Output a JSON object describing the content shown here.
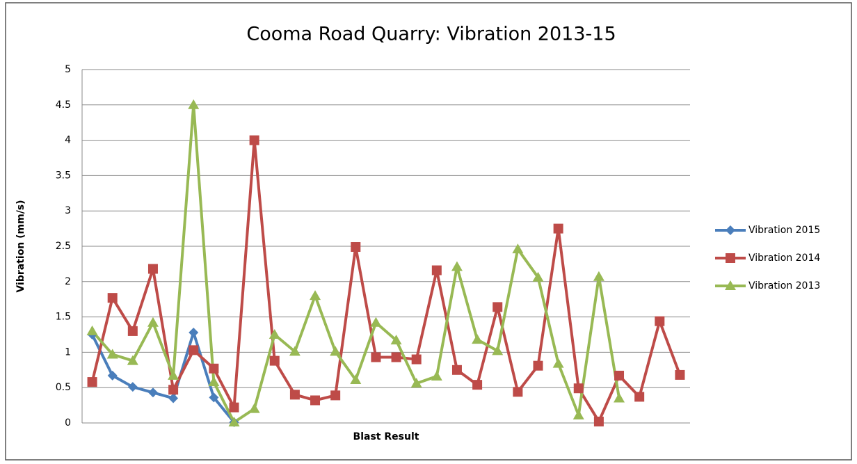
{
  "chart_data": {
    "type": "line",
    "title": "Cooma Road Quarry: Vibration 2013-15",
    "x_label": "Blast Result",
    "y_label": "Vibration (mm/s)",
    "categories": [
      null,
      null,
      null,
      null,
      null,
      null,
      null,
      null,
      null,
      null,
      null,
      null,
      null,
      null,
      null,
      null,
      null,
      null,
      null,
      null,
      null,
      null,
      null,
      null,
      null,
      null,
      null,
      null,
      null,
      null
    ],
    "series": [
      {
        "name": "Vibration 2015",
        "color": "#4a7ebb",
        "marker": "diamond",
        "values": [
          1.25,
          0.67,
          0.51,
          0.43,
          0.35,
          1.28,
          0.36,
          0.01,
          null,
          null,
          null,
          null,
          null,
          null,
          null,
          null,
          null,
          null,
          null,
          null,
          null,
          null,
          null,
          null,
          null,
          null,
          null,
          null,
          null,
          null
        ]
      },
      {
        "name": "Vibration 2014",
        "color": "#be4b48",
        "marker": "square",
        "values": [
          0.58,
          1.77,
          1.3,
          2.18,
          0.47,
          1.03,
          0.77,
          0.22,
          4.0,
          0.88,
          0.4,
          0.32,
          0.39,
          2.49,
          0.93,
          0.93,
          0.9,
          2.16,
          0.75,
          0.54,
          1.64,
          0.44,
          0.81,
          2.75,
          0.49,
          0.02,
          0.67,
          0.37,
          1.44,
          0.68
        ]
      },
      {
        "name": "Vibration 2013",
        "color": "#98b954",
        "marker": "triangle",
        "values": [
          1.3,
          0.97,
          0.88,
          1.42,
          0.67,
          4.5,
          0.58,
          0.01,
          0.2,
          1.25,
          1.01,
          1.8,
          1.01,
          0.61,
          1.42,
          1.17,
          0.56,
          0.66,
          2.21,
          1.18,
          1.02,
          2.46,
          2.06,
          0.84,
          0.11,
          2.07,
          0.35,
          null,
          null,
          null
        ]
      }
    ],
    "ylim": [
      0,
      5
    ],
    "yticks": [
      0,
      0.5,
      1,
      1.5,
      2,
      2.5,
      3,
      3.5,
      4,
      4.5,
      5
    ],
    "grid": true,
    "legend": "right"
  }
}
